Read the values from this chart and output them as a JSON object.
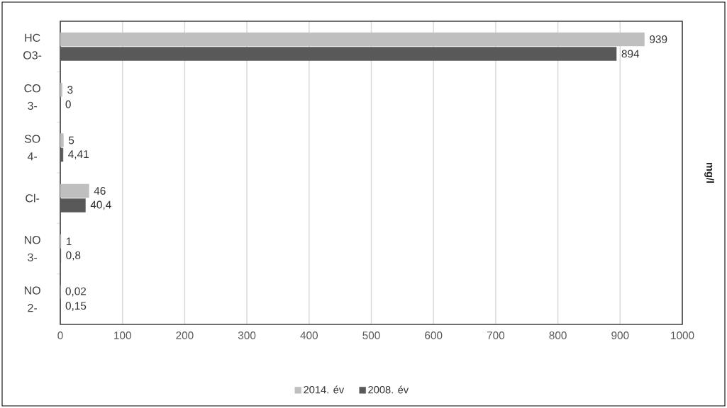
{
  "chart_data": {
    "type": "bar",
    "orientation": "horizontal",
    "categories": [
      "HC O3-",
      "CO 3-",
      "SO 4-",
      "Cl-",
      "NO 3-",
      "NO 2-"
    ],
    "series": [
      {
        "name": "2014. év",
        "color": "#bfbfbf",
        "values": [
          939,
          3,
          5,
          46,
          1,
          0.02
        ],
        "value_labels": [
          "939",
          "3",
          "5",
          "46",
          "1",
          "0,02"
        ]
      },
      {
        "name": "2008. év",
        "color": "#595959",
        "values": [
          894,
          0,
          4.41,
          40.4,
          0.8,
          0.15
        ],
        "value_labels": [
          "894",
          "0",
          "4,41",
          "40,4",
          "0,8",
          "0,15"
        ]
      }
    ],
    "y2label": "mg/l",
    "xlim": [
      0,
      1000
    ],
    "xticks": [
      0,
      100,
      200,
      300,
      400,
      500,
      600,
      700,
      800,
      900,
      1000
    ],
    "grid": "x",
    "legend": "bottom"
  }
}
